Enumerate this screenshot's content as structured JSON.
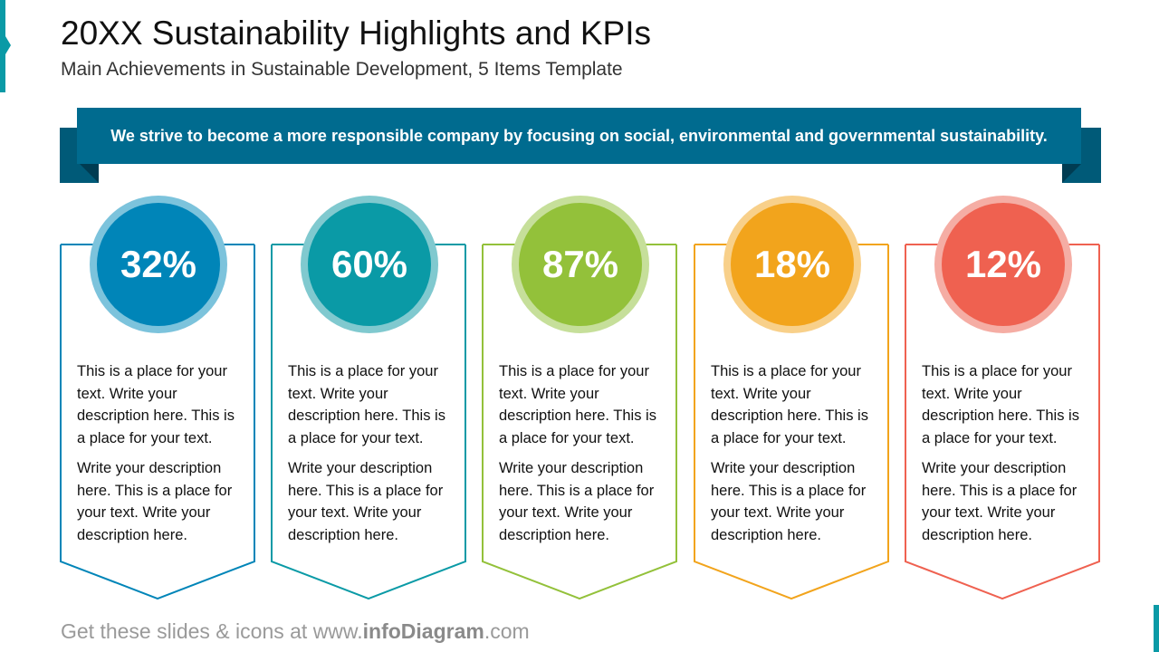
{
  "header": {
    "title": "20XX Sustainability Highlights and KPIs",
    "subtitle": "Main Achievements in Sustainable Development, 5 Items Template"
  },
  "banner": {
    "text": "We strive to become a more responsible company by focusing on social, environmental and governmental sustainability."
  },
  "items": [
    {
      "value": "32%",
      "color": "#0085b8",
      "ring": "#7cc3dc",
      "p1": "This is a place for your text. Write your description here. This is a place for your text.",
      "p2": "Write your description here. This is a place for your text. Write your description here."
    },
    {
      "value": "60%",
      "color": "#0a9aa6",
      "ring": "#80c9cf",
      "p1": "This is a place for your text. Write your description here. This is a place for your text.",
      "p2": "Write your description here. This is a place for your text. Write your description here."
    },
    {
      "value": "87%",
      "color": "#93c13a",
      "ring": "#c6df9a",
      "p1": "This is a place for your text. Write your description here. This is a place for your text.",
      "p2": "Write your description here. This is a place for your text. Write your description here."
    },
    {
      "value": "18%",
      "color": "#f2a41c",
      "ring": "#f8d08a",
      "p1": "This is a place for your text. Write your description here. This is a place for your text.",
      "p2": "Write your description here. This is a place for your text. Write your description here."
    },
    {
      "value": "12%",
      "color": "#ef6150",
      "ring": "#f5ada4",
      "p1": "This is a place for your text. Write your description here. This is a place for your text.",
      "p2": "Write your description here. This is a place for your text. Write your description here."
    }
  ],
  "footer": {
    "prefix": "Get these slides & icons at www.",
    "brand": "infoDiagram",
    "suffix": ".com"
  }
}
